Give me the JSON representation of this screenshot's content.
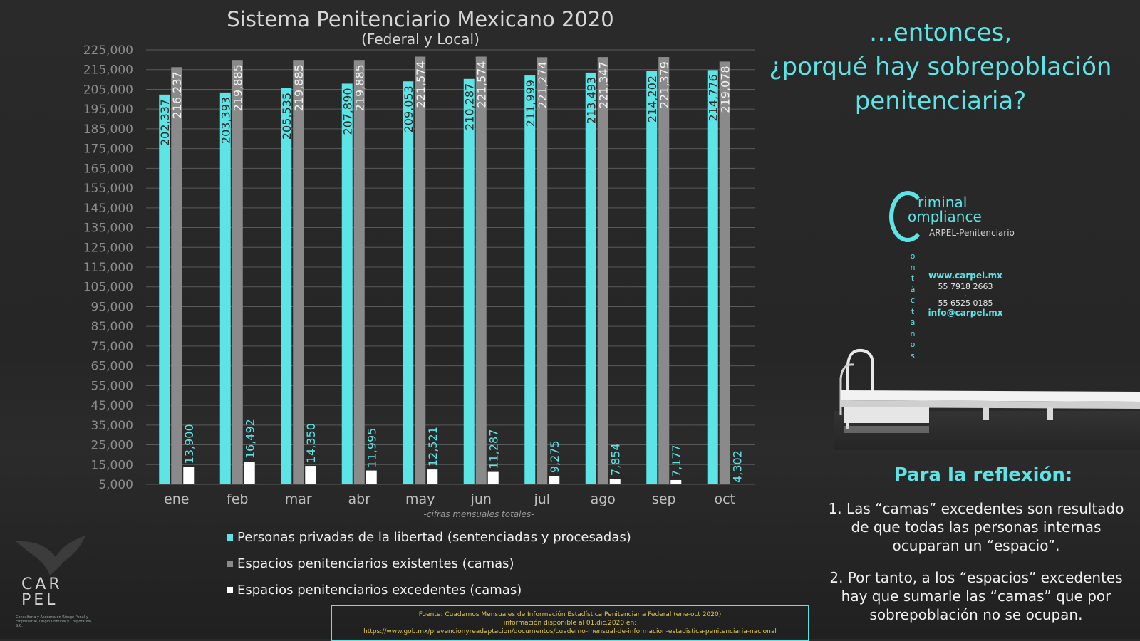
{
  "chart_data": {
    "type": "bar",
    "title": "Sistema Penitenciario Mexicano 2020",
    "subtitle": "(Federal y Local)",
    "xlabel": "-cifras mensuales totales-",
    "ylim": [
      5000,
      225000
    ],
    "yticks": [
      "225,000",
      "215,000",
      "205,000",
      "195,000",
      "185,000",
      "175,000",
      "165,000",
      "155,000",
      "145,000",
      "135,000",
      "125,000",
      "115,000",
      "105,000",
      "95,000",
      "85,000",
      "75,000",
      "65,000",
      "55,000",
      "45,000",
      "35,000",
      "25,000",
      "15,000",
      "5,000"
    ],
    "categories": [
      "ene",
      "feb",
      "mar",
      "abr",
      "may",
      "jun",
      "jul",
      "ago",
      "sep",
      "oct"
    ],
    "series": [
      {
        "name": "Personas privadas de la libertad (sentenciadas y procesadas)",
        "color": "#5ce4e6",
        "values": [
          202337,
          203393,
          205535,
          207890,
          209053,
          210287,
          211999,
          213493,
          214202,
          214776
        ],
        "labels": [
          "202,337",
          "203,393",
          "205,535",
          "207,890",
          "209,053",
          "210,287",
          "211,999",
          "213,493",
          "214,202",
          "214,776"
        ]
      },
      {
        "name": "Espacios penitenciarios existentes (camas)",
        "color": "#8a8a8a",
        "values": [
          216237,
          219885,
          219885,
          219885,
          221574,
          221574,
          221274,
          221347,
          221379,
          219078
        ],
        "labels": [
          "216,237",
          "219,885",
          "219,885",
          "219,885",
          "221,574",
          "221,574",
          "221,274",
          "221,347",
          "221,379",
          "219,078"
        ]
      },
      {
        "name": "Espacios penitenciarios excedentes (camas)",
        "color": "#ffffff",
        "values": [
          13900,
          16492,
          14350,
          11995,
          12521,
          11287,
          9275,
          7854,
          7177,
          4302
        ],
        "labels": [
          "13,900",
          "16,492",
          "14,350",
          "11,995",
          "12,521",
          "11,287",
          "9,275",
          "7,854",
          "7,177",
          "4,302"
        ]
      }
    ],
    "grid": true,
    "legend": "bottom"
  },
  "right": {
    "title_lines": [
      "…entonces,",
      "¿porqué hay sobrepoblación",
      "penitenciaria?"
    ],
    "logo_line1": "riminal",
    "logo_line2": "ompliance",
    "logo_sub": "ARPEL-Penitenciario",
    "contact_vertical": [
      "o",
      "n",
      "t",
      "á",
      "c",
      "t",
      "a",
      "n",
      "o",
      "s"
    ],
    "web": "www.carpel.mx",
    "phone1": "55 7918 2663",
    "phone2": "55 6525 0185",
    "email": "info@carpel.mx",
    "reflex_title": "Para la reflexión:",
    "reflex_1": "1. Las “camas” excedentes son resultado de que todas las personas internas ocuparan un “espacio”.",
    "reflex_2": "2. Por tanto, a los “espacios” excedentes hay que sumarle las “camas” que por sobrepoblación no se ocupan."
  },
  "source": {
    "line1": "Fuente: Cuadernos Mensuales de Información Estadística Penitenciaria Federal (ene-oct 2020)",
    "line2": "información disponible al 01.dic.2020 en:",
    "line3": "https://www.gob.mx/prevencionyreadaptacion/documentos/cuaderno-mensual-de-informacion-estadistica-penitenciaria-nacional"
  },
  "carpel": {
    "word_top": "CAR",
    "word_bottom": "PEL",
    "caption": "Consultoría y Asesoría en Riesgo Penal y Empresarial, Litigio Criminal y Corporativo, S.C."
  },
  "colors": {
    "accent": "#5ce4e6",
    "grey_bar": "#8a8a8a",
    "white_bar": "#ffffff"
  }
}
